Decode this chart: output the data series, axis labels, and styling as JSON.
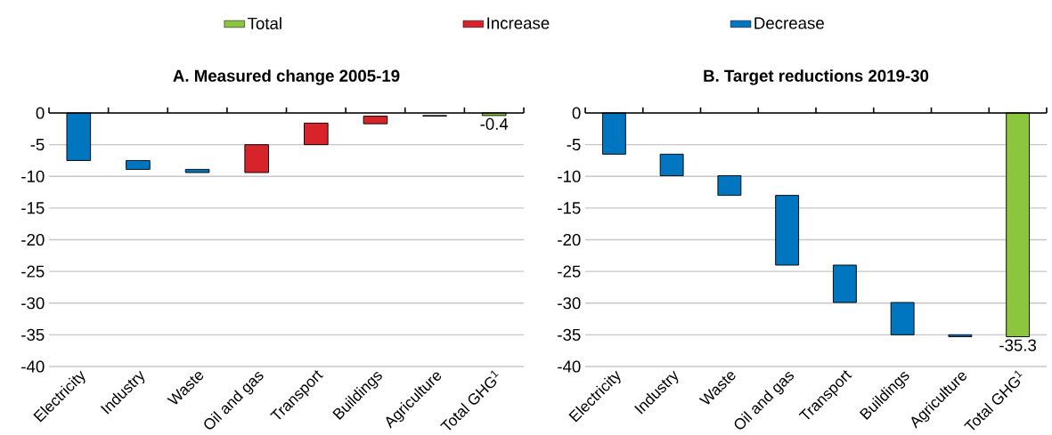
{
  "chart_data": [
    {
      "type": "bar",
      "title": "A. Measured change 2005-19",
      "categories": [
        "Electricity",
        "Industry",
        "Waste",
        "Oil and gas",
        "Transport",
        "Buildings",
        "Agriculture",
        "Total GHG$^{1}$"
      ],
      "ylim": [
        -40,
        0
      ],
      "yticks": [
        0,
        -5,
        -10,
        -15,
        -20,
        -25,
        -30,
        -35,
        -40
      ],
      "grid": "y",
      "legend": "top",
      "series": [
        {
          "name": "Total",
          "color": "#8cc63f",
          "base": [
            null,
            null,
            null,
            null,
            null,
            null,
            null,
            0
          ],
          "values": [
            null,
            null,
            null,
            null,
            null,
            null,
            null,
            -0.4
          ],
          "value_labels": [
            null,
            null,
            null,
            null,
            null,
            null,
            null,
            "-0.4"
          ]
        },
        {
          "name": "Increase",
          "color": "#d7242a",
          "base": [
            null,
            null,
            null,
            -9.4,
            -5.0,
            -1.7,
            null,
            null
          ],
          "values": [
            null,
            null,
            null,
            4.4,
            3.4,
            1.2,
            null,
            null
          ]
        },
        {
          "name": "Decrease",
          "color": "#0075c0",
          "base": [
            0,
            -7.5,
            -8.9,
            null,
            null,
            null,
            -0.4,
            null
          ],
          "values": [
            -7.5,
            -1.4,
            -0.5,
            null,
            null,
            null,
            -0.1,
            null
          ]
        }
      ]
    },
    {
      "type": "bar",
      "title": "B. Target reductions 2019-30",
      "categories": [
        "Electricity",
        "Industry",
        "Waste",
        "Oil and gas",
        "Transport",
        "Buildings",
        "Agriculture",
        "Total GHG$^{1}$"
      ],
      "ylim": [
        -40,
        0
      ],
      "yticks": [
        0,
        -5,
        -10,
        -15,
        -20,
        -25,
        -30,
        -35,
        -40
      ],
      "grid": "y",
      "series": [
        {
          "color": "#8cc63f",
          "base": [
            null,
            null,
            null,
            null,
            null,
            null,
            null,
            0
          ],
          "values": [
            null,
            null,
            null,
            null,
            null,
            null,
            null,
            -35.3
          ],
          "value_labels": [
            null,
            null,
            null,
            null,
            null,
            null,
            null,
            "-35.3"
          ]
        },
        {
          "color": "#0075c0",
          "base": [
            0,
            -6.5,
            -9.9,
            -13.0,
            -24.0,
            -29.9,
            -35.0,
            null
          ],
          "values": [
            -6.5,
            -3.4,
            -3.1,
            -11.0,
            -5.9,
            -5.1,
            -0.3,
            null
          ]
        }
      ]
    }
  ]
}
